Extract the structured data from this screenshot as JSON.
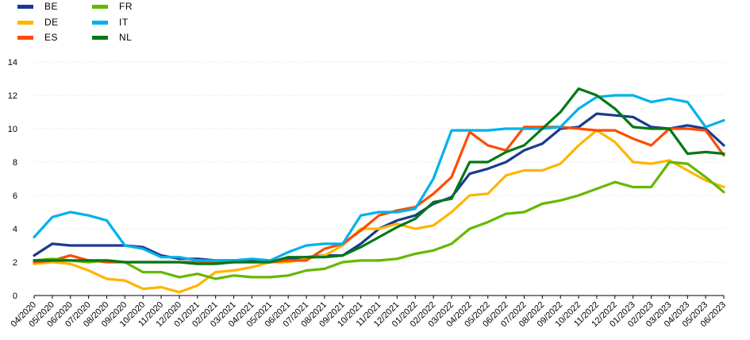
{
  "chart_data": {
    "type": "line",
    "title": "",
    "xlabel": "",
    "ylabel": "",
    "ylim": [
      0,
      14
    ],
    "yticks": [
      0,
      2,
      4,
      6,
      8,
      10,
      12,
      14
    ],
    "grid": "horizontal",
    "legend_position": "top-left",
    "x": [
      "04/2020",
      "05/2020",
      "06/2020",
      "07/2020",
      "08/2020",
      "09/2020",
      "10/2020",
      "11/2020",
      "12/2020",
      "01/2021",
      "02/2021",
      "03/2021",
      "04/2021",
      "05/2021",
      "06/2021",
      "07/2021",
      "08/2021",
      "09/2021",
      "10/2021",
      "11/2021",
      "12/2021",
      "01/2022",
      "02/2022",
      "03/2022",
      "04/2022",
      "05/2022",
      "06/2022",
      "07/2022",
      "08/2022",
      "09/2022",
      "10/2022",
      "11/2022",
      "12/2022",
      "01/2023",
      "02/2023",
      "03/2023",
      "04/2023",
      "05/2023",
      "06/2023"
    ],
    "series": [
      {
        "name": "BE",
        "color": "#1a3a8f",
        "values": [
          2.4,
          3.1,
          3.0,
          3.0,
          3.0,
          3.0,
          2.9,
          2.4,
          2.2,
          2.2,
          2.1,
          2.1,
          2.1,
          2.0,
          2.2,
          2.3,
          2.4,
          2.4,
          3.1,
          4.0,
          4.5,
          4.8,
          5.5,
          5.9,
          7.3,
          7.6,
          8.0,
          8.7,
          9.1,
          10.0,
          10.1,
          10.9,
          10.8,
          10.7,
          10.1,
          10.0,
          10.2,
          10.0,
          9.0
        ]
      },
      {
        "name": "DE",
        "color": "#ffb400",
        "values": [
          1.9,
          2.0,
          1.9,
          1.5,
          1.0,
          0.9,
          0.4,
          0.5,
          0.2,
          0.6,
          1.4,
          1.5,
          1.7,
          2.0,
          2.0,
          2.2,
          2.4,
          3.0,
          4.0,
          4.0,
          4.3,
          4.0,
          4.2,
          5.0,
          6.0,
          6.1,
          7.2,
          7.5,
          7.5,
          7.9,
          9.0,
          9.9,
          9.2,
          8.0,
          7.9,
          8.1,
          7.5,
          6.9,
          6.5
        ]
      },
      {
        "name": "ES",
        "color": "#ff4b00",
        "values": [
          2.0,
          2.1,
          2.4,
          2.1,
          2.0,
          2.0,
          2.0,
          2.0,
          2.0,
          2.0,
          2.0,
          2.0,
          2.0,
          2.0,
          2.1,
          2.1,
          2.8,
          3.1,
          3.9,
          4.8,
          5.1,
          5.3,
          6.1,
          7.1,
          9.8,
          9.0,
          8.7,
          10.1,
          10.1,
          10.1,
          10.0,
          9.9,
          9.9,
          9.4,
          9.0,
          10.0,
          10.0,
          9.9,
          8.4
        ]
      },
      {
        "name": "FR",
        "color": "#65b800",
        "values": [
          2.1,
          2.2,
          2.1,
          2.0,
          2.1,
          2.0,
          1.4,
          1.4,
          1.1,
          1.3,
          1.0,
          1.2,
          1.1,
          1.1,
          1.2,
          1.5,
          1.6,
          2.0,
          2.1,
          2.1,
          2.2,
          2.5,
          2.7,
          3.1,
          4.0,
          4.4,
          4.9,
          5.0,
          5.5,
          5.7,
          6.0,
          6.4,
          6.8,
          6.5,
          6.5,
          8.0,
          7.9,
          7.1,
          6.2
        ]
      },
      {
        "name": "IT",
        "color": "#00b1ea",
        "values": [
          3.5,
          4.7,
          5.0,
          4.8,
          4.5,
          3.0,
          2.8,
          2.3,
          2.3,
          2.1,
          2.1,
          2.1,
          2.2,
          2.1,
          2.6,
          3.0,
          3.1,
          3.1,
          4.8,
          5.0,
          5.0,
          5.2,
          7.0,
          9.9,
          9.9,
          9.9,
          10.0,
          10.0,
          10.0,
          10.1,
          11.2,
          11.9,
          12.0,
          12.0,
          11.6,
          11.8,
          11.6,
          10.1,
          10.5
        ]
      },
      {
        "name": "NL",
        "color": "#007816",
        "values": [
          2.1,
          2.1,
          2.1,
          2.1,
          2.1,
          2.0,
          2.0,
          2.0,
          2.0,
          1.9,
          1.9,
          2.0,
          2.0,
          2.0,
          2.3,
          2.3,
          2.3,
          2.4,
          2.9,
          3.5,
          4.1,
          4.6,
          5.6,
          5.8,
          8.0,
          8.0,
          8.6,
          9.0,
          10.0,
          11.0,
          12.4,
          12.0,
          11.2,
          10.1,
          10.0,
          10.0,
          8.5,
          8.6,
          8.5
        ]
      }
    ]
  }
}
